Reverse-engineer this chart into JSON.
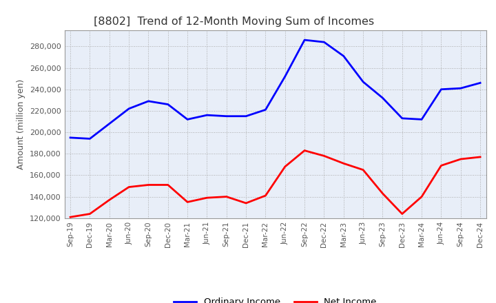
{
  "title": "[8802]  Trend of 12-Month Moving Sum of Incomes",
  "ylabel": "Amount (million yen)",
  "x_labels": [
    "Sep-19",
    "Dec-19",
    "Mar-20",
    "Jun-20",
    "Sep-20",
    "Dec-20",
    "Mar-21",
    "Jun-21",
    "Sep-21",
    "Dec-21",
    "Mar-22",
    "Jun-22",
    "Sep-22",
    "Dec-22",
    "Mar-23",
    "Jun-23",
    "Sep-23",
    "Dec-23",
    "Mar-24",
    "Jun-24",
    "Sep-24",
    "Dec-24"
  ],
  "ordinary_income": [
    195000,
    194000,
    208000,
    222000,
    229000,
    226000,
    212000,
    216000,
    215000,
    215000,
    221000,
    252000,
    286000,
    284000,
    271000,
    247000,
    232000,
    213000,
    212000,
    240000,
    241000,
    246000
  ],
  "net_income": [
    121000,
    124000,
    137000,
    149000,
    151000,
    151000,
    135000,
    139000,
    140000,
    134000,
    141000,
    168000,
    183000,
    178000,
    171000,
    165000,
    143000,
    124000,
    140000,
    169000,
    175000,
    177000
  ],
  "ordinary_color": "#0000ff",
  "net_color": "#ff0000",
  "background_color": "#ffffff",
  "plot_bg_color": "#e8eef8",
  "grid_color": "#aaaaaa",
  "ylim_min": 120000,
  "ylim_max": 295000,
  "yticks": [
    120000,
    140000,
    160000,
    180000,
    200000,
    220000,
    240000,
    260000,
    280000
  ],
  "line_width": 2.0,
  "legend_labels": [
    "Ordinary Income",
    "Net Income"
  ],
  "title_color": "#333333",
  "tick_color": "#555555"
}
